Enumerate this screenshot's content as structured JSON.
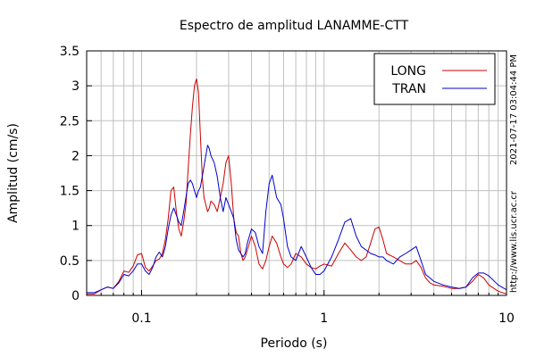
{
  "chart_data": {
    "type": "line",
    "title": "Espectro de amplitud LANAMME-CTT",
    "xlabel": "Periodo (s)",
    "ylabel": "Amplitud (cm/s)",
    "x_scale": "log",
    "xlim": [
      0.05,
      10
    ],
    "ylim": [
      0,
      3.5
    ],
    "x_ticks": [
      0.1,
      1,
      10
    ],
    "x_tick_labels": [
      "0.1",
      "1",
      "10"
    ],
    "y_ticks": [
      0,
      0.5,
      1,
      1.5,
      2,
      2.5,
      3,
      3.5
    ],
    "y_tick_labels": [
      "0",
      "0.5",
      "1",
      "1.5",
      "2",
      "2.5",
      "3",
      "3.5"
    ],
    "grid": true,
    "legend": "top-right",
    "timestamp": "2021-07-17 03:04:44 PM",
    "source": "http://www.lis.ucr.ac.cr",
    "colors": {
      "LONG": "#cc0000",
      "TRAN": "#0000cc"
    },
    "series": [
      {
        "name": "LONG",
        "points": [
          [
            0.05,
            0.02
          ],
          [
            0.055,
            0.02
          ],
          [
            0.06,
            0.08
          ],
          [
            0.065,
            0.12
          ],
          [
            0.07,
            0.1
          ],
          [
            0.075,
            0.2
          ],
          [
            0.08,
            0.35
          ],
          [
            0.085,
            0.33
          ],
          [
            0.09,
            0.42
          ],
          [
            0.095,
            0.58
          ],
          [
            0.1,
            0.6
          ],
          [
            0.105,
            0.4
          ],
          [
            0.11,
            0.35
          ],
          [
            0.115,
            0.42
          ],
          [
            0.12,
            0.5
          ],
          [
            0.125,
            0.52
          ],
          [
            0.13,
            0.6
          ],
          [
            0.135,
            0.8
          ],
          [
            0.14,
            1.1
          ],
          [
            0.145,
            1.5
          ],
          [
            0.15,
            1.55
          ],
          [
            0.155,
            1.2
          ],
          [
            0.16,
            0.95
          ],
          [
            0.165,
            0.85
          ],
          [
            0.17,
            1.05
          ],
          [
            0.175,
            1.3
          ],
          [
            0.18,
            1.8
          ],
          [
            0.185,
            2.3
          ],
          [
            0.19,
            2.7
          ],
          [
            0.195,
            3.0
          ],
          [
            0.2,
            3.1
          ],
          [
            0.205,
            2.9
          ],
          [
            0.21,
            2.3
          ],
          [
            0.215,
            1.7
          ],
          [
            0.22,
            1.4
          ],
          [
            0.225,
            1.3
          ],
          [
            0.23,
            1.2
          ],
          [
            0.235,
            1.25
          ],
          [
            0.24,
            1.35
          ],
          [
            0.25,
            1.3
          ],
          [
            0.26,
            1.2
          ],
          [
            0.27,
            1.4
          ],
          [
            0.28,
            1.6
          ],
          [
            0.29,
            1.9
          ],
          [
            0.3,
            2.0
          ],
          [
            0.31,
            1.6
          ],
          [
            0.32,
            1.1
          ],
          [
            0.33,
            0.9
          ],
          [
            0.34,
            0.85
          ],
          [
            0.35,
            0.6
          ],
          [
            0.36,
            0.5
          ],
          [
            0.37,
            0.55
          ],
          [
            0.38,
            0.65
          ],
          [
            0.4,
            0.85
          ],
          [
            0.42,
            0.7
          ],
          [
            0.44,
            0.45
          ],
          [
            0.46,
            0.38
          ],
          [
            0.48,
            0.5
          ],
          [
            0.5,
            0.7
          ],
          [
            0.52,
            0.85
          ],
          [
            0.55,
            0.75
          ],
          [
            0.58,
            0.55
          ],
          [
            0.6,
            0.45
          ],
          [
            0.63,
            0.4
          ],
          [
            0.66,
            0.45
          ],
          [
            0.7,
            0.6
          ],
          [
            0.75,
            0.55
          ],
          [
            0.8,
            0.45
          ],
          [
            0.85,
            0.4
          ],
          [
            0.9,
            0.38
          ],
          [
            0.95,
            0.42
          ],
          [
            1.0,
            0.45
          ],
          [
            1.1,
            0.42
          ],
          [
            1.2,
            0.6
          ],
          [
            1.3,
            0.75
          ],
          [
            1.4,
            0.65
          ],
          [
            1.5,
            0.55
          ],
          [
            1.6,
            0.5
          ],
          [
            1.7,
            0.55
          ],
          [
            1.8,
            0.75
          ],
          [
            1.9,
            0.95
          ],
          [
            2.0,
            0.98
          ],
          [
            2.1,
            0.8
          ],
          [
            2.2,
            0.6
          ],
          [
            2.4,
            0.55
          ],
          [
            2.6,
            0.5
          ],
          [
            2.8,
            0.45
          ],
          [
            3.0,
            0.45
          ],
          [
            3.2,
            0.5
          ],
          [
            3.4,
            0.4
          ],
          [
            3.6,
            0.25
          ],
          [
            3.8,
            0.18
          ],
          [
            4.0,
            0.15
          ],
          [
            4.5,
            0.13
          ],
          [
            5.0,
            0.1
          ],
          [
            5.5,
            0.1
          ],
          [
            6.0,
            0.12
          ],
          [
            6.5,
            0.2
          ],
          [
            7.0,
            0.3
          ],
          [
            7.5,
            0.25
          ],
          [
            8.0,
            0.15
          ],
          [
            9.0,
            0.06
          ],
          [
            10.0,
            0.02
          ]
        ]
      },
      {
        "name": "TRAN",
        "points": [
          [
            0.05,
            0.04
          ],
          [
            0.055,
            0.04
          ],
          [
            0.06,
            0.08
          ],
          [
            0.065,
            0.12
          ],
          [
            0.07,
            0.1
          ],
          [
            0.075,
            0.18
          ],
          [
            0.08,
            0.3
          ],
          [
            0.085,
            0.28
          ],
          [
            0.09,
            0.35
          ],
          [
            0.095,
            0.45
          ],
          [
            0.1,
            0.45
          ],
          [
            0.105,
            0.35
          ],
          [
            0.11,
            0.3
          ],
          [
            0.115,
            0.4
          ],
          [
            0.12,
            0.55
          ],
          [
            0.125,
            0.62
          ],
          [
            0.13,
            0.55
          ],
          [
            0.135,
            0.7
          ],
          [
            0.14,
            0.95
          ],
          [
            0.145,
            1.15
          ],
          [
            0.15,
            1.25
          ],
          [
            0.155,
            1.15
          ],
          [
            0.16,
            1.05
          ],
          [
            0.165,
            1.0
          ],
          [
            0.17,
            1.2
          ],
          [
            0.175,
            1.4
          ],
          [
            0.18,
            1.6
          ],
          [
            0.185,
            1.65
          ],
          [
            0.19,
            1.6
          ],
          [
            0.195,
            1.5
          ],
          [
            0.2,
            1.4
          ],
          [
            0.205,
            1.5
          ],
          [
            0.21,
            1.55
          ],
          [
            0.215,
            1.7
          ],
          [
            0.22,
            1.85
          ],
          [
            0.225,
            2.0
          ],
          [
            0.23,
            2.15
          ],
          [
            0.235,
            2.1
          ],
          [
            0.24,
            2.0
          ],
          [
            0.25,
            1.9
          ],
          [
            0.26,
            1.7
          ],
          [
            0.27,
            1.4
          ],
          [
            0.28,
            1.2
          ],
          [
            0.29,
            1.4
          ],
          [
            0.3,
            1.3
          ],
          [
            0.31,
            1.2
          ],
          [
            0.32,
            1.1
          ],
          [
            0.33,
            0.8
          ],
          [
            0.34,
            0.65
          ],
          [
            0.35,
            0.6
          ],
          [
            0.36,
            0.55
          ],
          [
            0.37,
            0.6
          ],
          [
            0.38,
            0.75
          ],
          [
            0.4,
            0.95
          ],
          [
            0.42,
            0.9
          ],
          [
            0.44,
            0.7
          ],
          [
            0.46,
            0.6
          ],
          [
            0.48,
            1.2
          ],
          [
            0.5,
            1.6
          ],
          [
            0.52,
            1.72
          ],
          [
            0.55,
            1.4
          ],
          [
            0.58,
            1.3
          ],
          [
            0.6,
            1.1
          ],
          [
            0.63,
            0.7
          ],
          [
            0.66,
            0.55
          ],
          [
            0.7,
            0.5
          ],
          [
            0.75,
            0.7
          ],
          [
            0.8,
            0.55
          ],
          [
            0.85,
            0.4
          ],
          [
            0.9,
            0.3
          ],
          [
            0.95,
            0.3
          ],
          [
            1.0,
            0.35
          ],
          [
            1.1,
            0.55
          ],
          [
            1.2,
            0.8
          ],
          [
            1.3,
            1.05
          ],
          [
            1.4,
            1.1
          ],
          [
            1.5,
            0.85
          ],
          [
            1.6,
            0.7
          ],
          [
            1.7,
            0.65
          ],
          [
            1.8,
            0.6
          ],
          [
            1.9,
            0.58
          ],
          [
            2.0,
            0.55
          ],
          [
            2.1,
            0.55
          ],
          [
            2.2,
            0.5
          ],
          [
            2.4,
            0.45
          ],
          [
            2.6,
            0.55
          ],
          [
            2.8,
            0.6
          ],
          [
            3.0,
            0.65
          ],
          [
            3.2,
            0.7
          ],
          [
            3.4,
            0.5
          ],
          [
            3.6,
            0.3
          ],
          [
            3.8,
            0.25
          ],
          [
            4.0,
            0.2
          ],
          [
            4.5,
            0.15
          ],
          [
            5.0,
            0.12
          ],
          [
            5.5,
            0.1
          ],
          [
            6.0,
            0.12
          ],
          [
            6.5,
            0.25
          ],
          [
            7.0,
            0.32
          ],
          [
            7.5,
            0.32
          ],
          [
            8.0,
            0.28
          ],
          [
            9.0,
            0.15
          ],
          [
            10.0,
            0.08
          ]
        ]
      }
    ]
  }
}
